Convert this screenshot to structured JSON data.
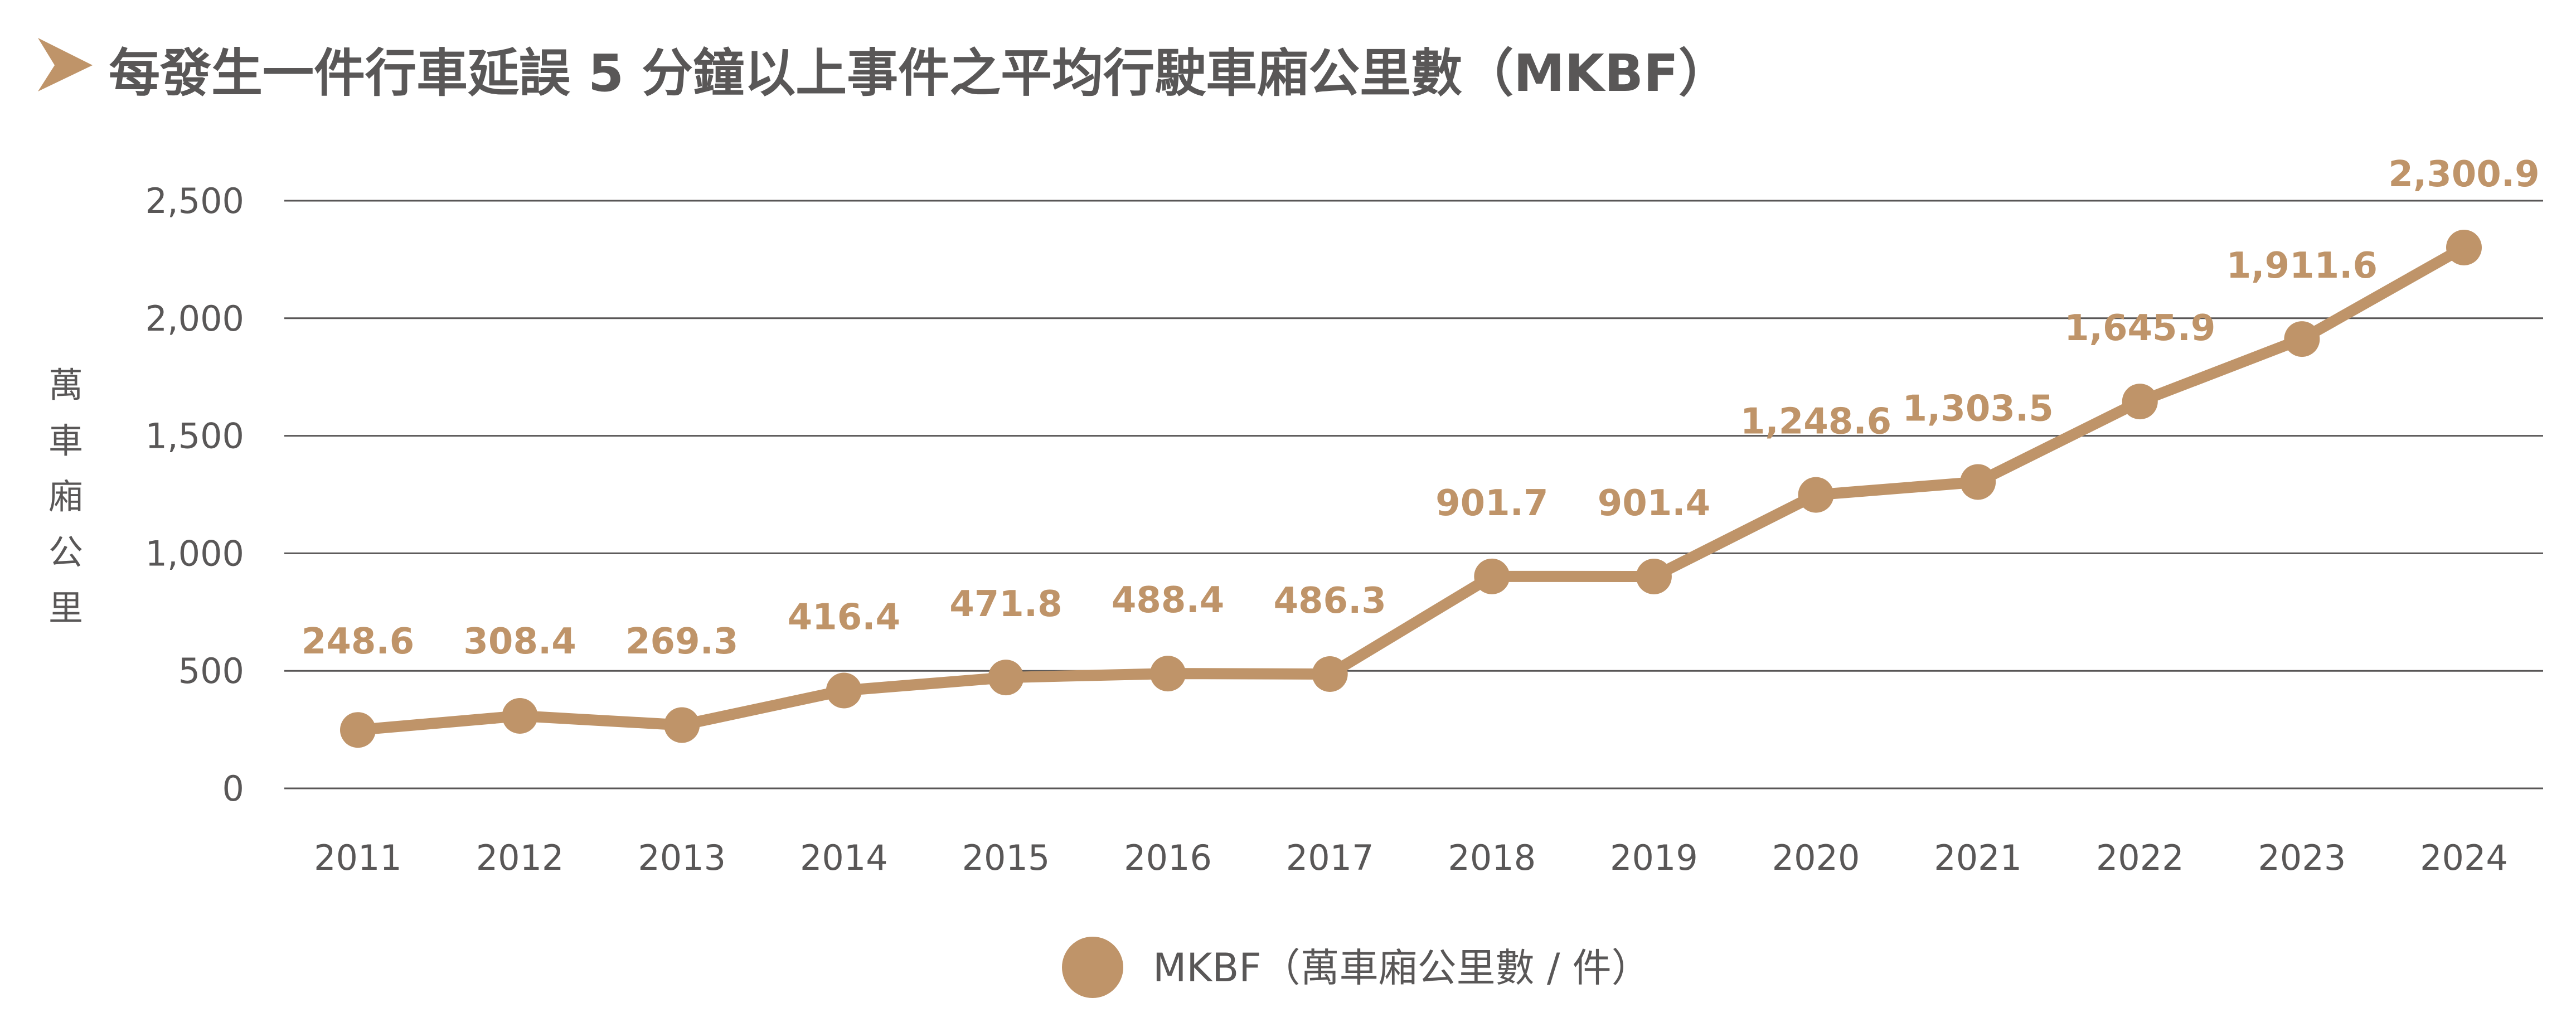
{
  "title": "每發生一件行車延誤 5 分鐘以上事件之平均行駛車廂公里數（MKBF）",
  "colors": {
    "accent": "#bf9469",
    "text": "#595757",
    "grid": "#595757"
  },
  "chart_data": {
    "type": "line",
    "title": "每發生一件行車延誤 5 分鐘以上事件之平均行駛車廂公里數（MKBF）",
    "xlabel": "",
    "ylabel": "萬車廂公里",
    "ylim": [
      0,
      2500
    ],
    "yticks": [
      "0",
      "500",
      "1,000",
      "1,500",
      "2,000",
      "2,500"
    ],
    "ytick_values": [
      0,
      500,
      1000,
      1500,
      2000,
      2500
    ],
    "grid": true,
    "legend_position": "bottom",
    "categories": [
      "2011",
      "2012",
      "2013",
      "2014",
      "2015",
      "2016",
      "2017",
      "2018",
      "2019",
      "2020",
      "2021",
      "2022",
      "2023",
      "2024"
    ],
    "series": [
      {
        "name": "MKBF（萬車廂公里數 / 件）",
        "color": "#bf9469",
        "values": [
          248.6,
          308.4,
          269.3,
          416.4,
          471.8,
          488.4,
          486.3,
          901.7,
          901.4,
          1248.6,
          1303.5,
          1645.9,
          1911.6,
          2300.9
        ],
        "labels": [
          "248.6",
          "308.4",
          "269.3",
          "416.4",
          "471.8",
          "488.4",
          "486.3",
          "901.7",
          "901.4",
          "1,248.6",
          "1,303.5",
          "1,645.9",
          "1,911.6",
          "2,300.9"
        ]
      }
    ]
  }
}
